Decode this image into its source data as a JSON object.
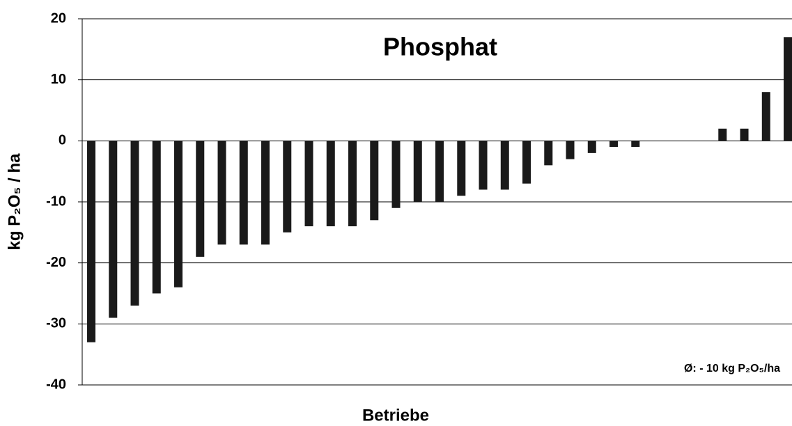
{
  "chart_data": {
    "type": "bar",
    "title": "Phosphat",
    "x_label": "Betriebe",
    "y_label": "kg P₂O₅ / ha",
    "annotation": "Ø: - 10 kg P₂O₅/ha",
    "categories": [
      null,
      null,
      null,
      null,
      null,
      null,
      null,
      null,
      null,
      null,
      null,
      null,
      null,
      null,
      null,
      null,
      null,
      null,
      null,
      null,
      null,
      null,
      null,
      null,
      null,
      null,
      null,
      null,
      null,
      null,
      null,
      null,
      null
    ],
    "values": [
      -33,
      -29,
      -27,
      -25,
      -24,
      -19,
      -17,
      -17,
      -17,
      -15,
      -14,
      -14,
      -14,
      -13,
      -11,
      -10,
      -10,
      -9,
      -8,
      -8,
      -7,
      -4,
      -3,
      -2,
      -1,
      -1,
      0,
      0,
      0,
      2,
      2,
      8,
      17
    ],
    "color": "#1a1a1a",
    "ylim": [
      -40,
      20
    ],
    "yticks": [
      20,
      10,
      0,
      -10,
      -20,
      -30,
      -40
    ],
    "grid": true
  }
}
